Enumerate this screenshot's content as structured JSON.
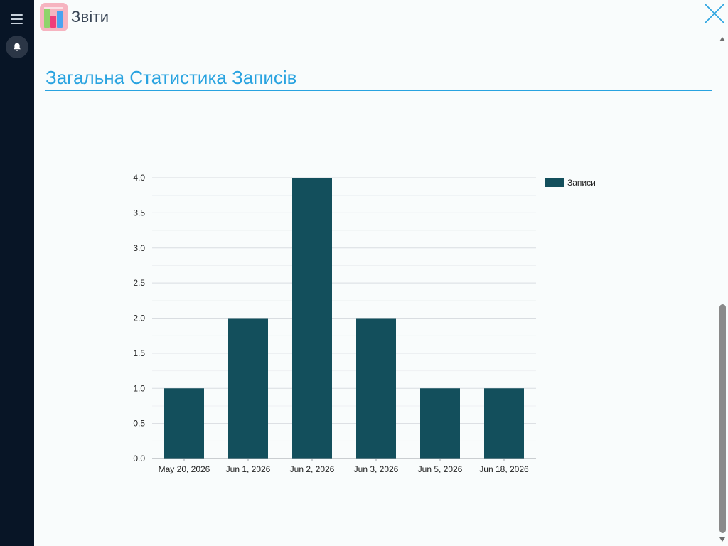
{
  "app": {
    "title": "Звіти",
    "icon": "bar-chart-app-icon"
  },
  "sidebar": {
    "menu_icon": "hamburger-menu-icon",
    "notifications_icon": "bell-icon"
  },
  "header": {
    "close_icon": "close-icon"
  },
  "section": {
    "title": "Загальна Статистика Записів"
  },
  "colors": {
    "accent": "#29a3e0",
    "bar": "#134f5c",
    "sidebar": "#081526"
  },
  "chart_data": {
    "type": "bar",
    "categories": [
      "May 20, 2026",
      "Jun 1, 2026",
      "Jun 2, 2026",
      "Jun 3, 2026",
      "Jun 5, 2026",
      "Jun 18, 2026"
    ],
    "series": [
      {
        "name": "Записи",
        "values": [
          1,
          2,
          4,
          2,
          1,
          1
        ],
        "color": "#134f5c"
      }
    ],
    "ylim": [
      0,
      4
    ],
    "yticks": [
      "0.0",
      "0.5",
      "1.0",
      "1.5",
      "2.0",
      "2.5",
      "3.0",
      "3.5",
      "4.0"
    ],
    "ytick_values": [
      0,
      0.5,
      1,
      1.5,
      2,
      2.5,
      3,
      3.5,
      4
    ],
    "grid": true,
    "legend_position": "top-right"
  }
}
